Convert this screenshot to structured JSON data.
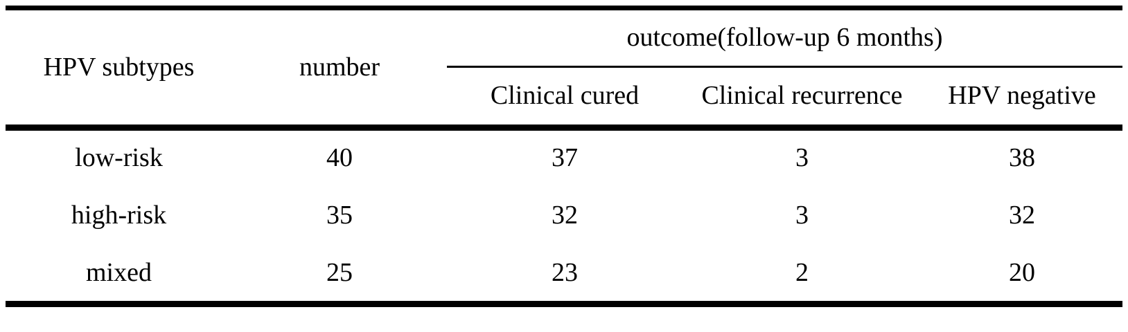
{
  "table": {
    "header": {
      "hpv_subtypes": "HPV subtypes",
      "number": "number",
      "outcome_group": "outcome(follow-up 6 months)",
      "clinical_cured": "Clinical cured",
      "clinical_recurrence": "Clinical recurrence",
      "hpv_negative": "HPV negative"
    },
    "rows": [
      {
        "subtype": "low-risk",
        "number": "40",
        "clinical_cured": "37",
        "clinical_recurrence": "3",
        "hpv_negative": "38"
      },
      {
        "subtype": "high-risk",
        "number": "35",
        "clinical_cured": "32",
        "clinical_recurrence": "3",
        "hpv_negative": "32"
      },
      {
        "subtype": "mixed",
        "number": "25",
        "clinical_cured": "23",
        "clinical_recurrence": "2",
        "hpv_negative": "20"
      }
    ],
    "colors": {
      "text": "#000000",
      "rules": "#000000",
      "background": "#ffffff"
    }
  },
  "chart_data": {
    "type": "table",
    "columns": [
      "HPV subtypes",
      "number",
      "Clinical cured",
      "Clinical recurrence",
      "HPV negative"
    ],
    "column_groups": [
      {
        "label": "outcome(follow-up 6 months)",
        "columns": [
          "Clinical cured",
          "Clinical recurrence",
          "HPV negative"
        ]
      }
    ],
    "rows": [
      [
        "low-risk",
        40,
        37,
        3,
        38
      ],
      [
        "high-risk",
        35,
        32,
        3,
        32
      ],
      [
        "mixed",
        25,
        23,
        2,
        20
      ]
    ]
  }
}
